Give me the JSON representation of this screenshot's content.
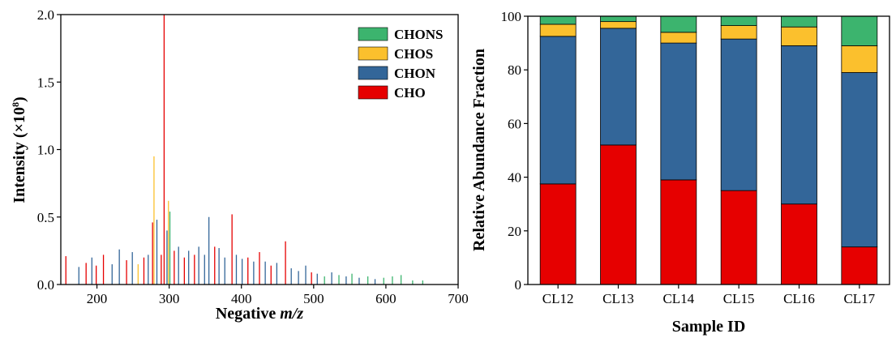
{
  "colors": {
    "CHONS": "#3cb46e",
    "CHOS": "#fbc02d",
    "CHON": "#336699",
    "CHO": "#e60000"
  },
  "chart_data": [
    {
      "type": "bar",
      "subtype": "mass-spectrum",
      "xlabel_prefix": "Negative ",
      "xlabel_italic": "m/z",
      "ylabel_prefix": "Intensity (×10",
      "ylabel_sup": "8",
      "ylabel_suffix": ")",
      "xlim": [
        150,
        700
      ],
      "ylim": [
        0,
        2.0
      ],
      "x_ticks": [
        200,
        300,
        400,
        500,
        600,
        700
      ],
      "y_ticks": [
        0.0,
        0.5,
        1.0,
        1.5,
        2.0
      ],
      "y_tick_labels": [
        "0.0",
        "0.5",
        "1.0",
        "1.5",
        "2.0"
      ],
      "legend": [
        "CHONS",
        "CHOS",
        "CHON",
        "CHO"
      ],
      "legend_position": "top-right",
      "peaks": [
        {
          "x": 157,
          "y": 0.21,
          "series": "CHO"
        },
        {
          "x": 175,
          "y": 0.13,
          "series": "CHON"
        },
        {
          "x": 185,
          "y": 0.16,
          "series": "CHO"
        },
        {
          "x": 193,
          "y": 0.2,
          "series": "CHON"
        },
        {
          "x": 199,
          "y": 0.14,
          "series": "CHO"
        },
        {
          "x": 209,
          "y": 0.22,
          "series": "CHO"
        },
        {
          "x": 221,
          "y": 0.15,
          "series": "CHON"
        },
        {
          "x": 231,
          "y": 0.26,
          "series": "CHON"
        },
        {
          "x": 241,
          "y": 0.18,
          "series": "CHO"
        },
        {
          "x": 249,
          "y": 0.24,
          "series": "CHON"
        },
        {
          "x": 257,
          "y": 0.15,
          "series": "CHOS"
        },
        {
          "x": 265,
          "y": 0.2,
          "series": "CHO"
        },
        {
          "x": 271,
          "y": 0.22,
          "series": "CHON"
        },
        {
          "x": 277,
          "y": 0.46,
          "series": "CHO"
        },
        {
          "x": 279,
          "y": 0.95,
          "series": "CHOS"
        },
        {
          "x": 283,
          "y": 0.48,
          "series": "CHON"
        },
        {
          "x": 289,
          "y": 0.22,
          "series": "CHO"
        },
        {
          "x": 293,
          "y": 2.0,
          "series": "CHO"
        },
        {
          "x": 297,
          "y": 0.4,
          "series": "CHON"
        },
        {
          "x": 299,
          "y": 0.62,
          "series": "CHOS"
        },
        {
          "x": 301,
          "y": 0.54,
          "series": "CHONS"
        },
        {
          "x": 307,
          "y": 0.25,
          "series": "CHO"
        },
        {
          "x": 313,
          "y": 0.28,
          "series": "CHON"
        },
        {
          "x": 321,
          "y": 0.2,
          "series": "CHO"
        },
        {
          "x": 327,
          "y": 0.25,
          "series": "CHON"
        },
        {
          "x": 335,
          "y": 0.22,
          "series": "CHO"
        },
        {
          "x": 341,
          "y": 0.28,
          "series": "CHON"
        },
        {
          "x": 349,
          "y": 0.22,
          "series": "CHON"
        },
        {
          "x": 355,
          "y": 0.5,
          "series": "CHON"
        },
        {
          "x": 363,
          "y": 0.28,
          "series": "CHO"
        },
        {
          "x": 369,
          "y": 0.27,
          "series": "CHON"
        },
        {
          "x": 377,
          "y": 0.2,
          "series": "CHON"
        },
        {
          "x": 387,
          "y": 0.52,
          "series": "CHO"
        },
        {
          "x": 393,
          "y": 0.22,
          "series": "CHON"
        },
        {
          "x": 401,
          "y": 0.19,
          "series": "CHON"
        },
        {
          "x": 409,
          "y": 0.2,
          "series": "CHO"
        },
        {
          "x": 417,
          "y": 0.17,
          "series": "CHON"
        },
        {
          "x": 425,
          "y": 0.24,
          "series": "CHO"
        },
        {
          "x": 433,
          "y": 0.17,
          "series": "CHON"
        },
        {
          "x": 441,
          "y": 0.14,
          "series": "CHO"
        },
        {
          "x": 449,
          "y": 0.16,
          "series": "CHON"
        },
        {
          "x": 461,
          "y": 0.32,
          "series": "CHO"
        },
        {
          "x": 469,
          "y": 0.12,
          "series": "CHON"
        },
        {
          "x": 479,
          "y": 0.1,
          "series": "CHON"
        },
        {
          "x": 489,
          "y": 0.14,
          "series": "CHON"
        },
        {
          "x": 497,
          "y": 0.09,
          "series": "CHO"
        },
        {
          "x": 505,
          "y": 0.08,
          "series": "CHON"
        },
        {
          "x": 515,
          "y": 0.06,
          "series": "CHONS"
        },
        {
          "x": 525,
          "y": 0.09,
          "series": "CHON"
        },
        {
          "x": 535,
          "y": 0.07,
          "series": "CHONS"
        },
        {
          "x": 545,
          "y": 0.06,
          "series": "CHON"
        },
        {
          "x": 553,
          "y": 0.08,
          "series": "CHONS"
        },
        {
          "x": 563,
          "y": 0.05,
          "series": "CHON"
        },
        {
          "x": 575,
          "y": 0.06,
          "series": "CHONS"
        },
        {
          "x": 585,
          "y": 0.04,
          "series": "CHON"
        },
        {
          "x": 597,
          "y": 0.05,
          "series": "CHONS"
        },
        {
          "x": 609,
          "y": 0.06,
          "series": "CHONS"
        },
        {
          "x": 621,
          "y": 0.07,
          "series": "CHONS"
        },
        {
          "x": 637,
          "y": 0.03,
          "series": "CHONS"
        },
        {
          "x": 651,
          "y": 0.03,
          "series": "CHONS"
        }
      ]
    },
    {
      "type": "bar",
      "subtype": "stacked",
      "xlabel": "Sample ID",
      "ylabel": "Relative Abundance Fraction",
      "ylim": [
        0,
        100
      ],
      "y_ticks": [
        0,
        20,
        40,
        60,
        80,
        100
      ],
      "categories": [
        "CL12",
        "CL13",
        "CL14",
        "CL15",
        "CL16",
        "CL17"
      ],
      "series": [
        {
          "name": "CHO",
          "values": [
            37.5,
            52.0,
            39.0,
            35.0,
            30.0,
            14.0
          ]
        },
        {
          "name": "CHON",
          "values": [
            55.0,
            43.5,
            51.0,
            56.5,
            59.0,
            65.0
          ]
        },
        {
          "name": "CHOS",
          "values": [
            4.5,
            2.5,
            4.0,
            5.0,
            7.0,
            10.0
          ]
        },
        {
          "name": "CHONS",
          "values": [
            3.0,
            2.0,
            6.0,
            3.5,
            4.0,
            11.0
          ]
        }
      ]
    }
  ]
}
